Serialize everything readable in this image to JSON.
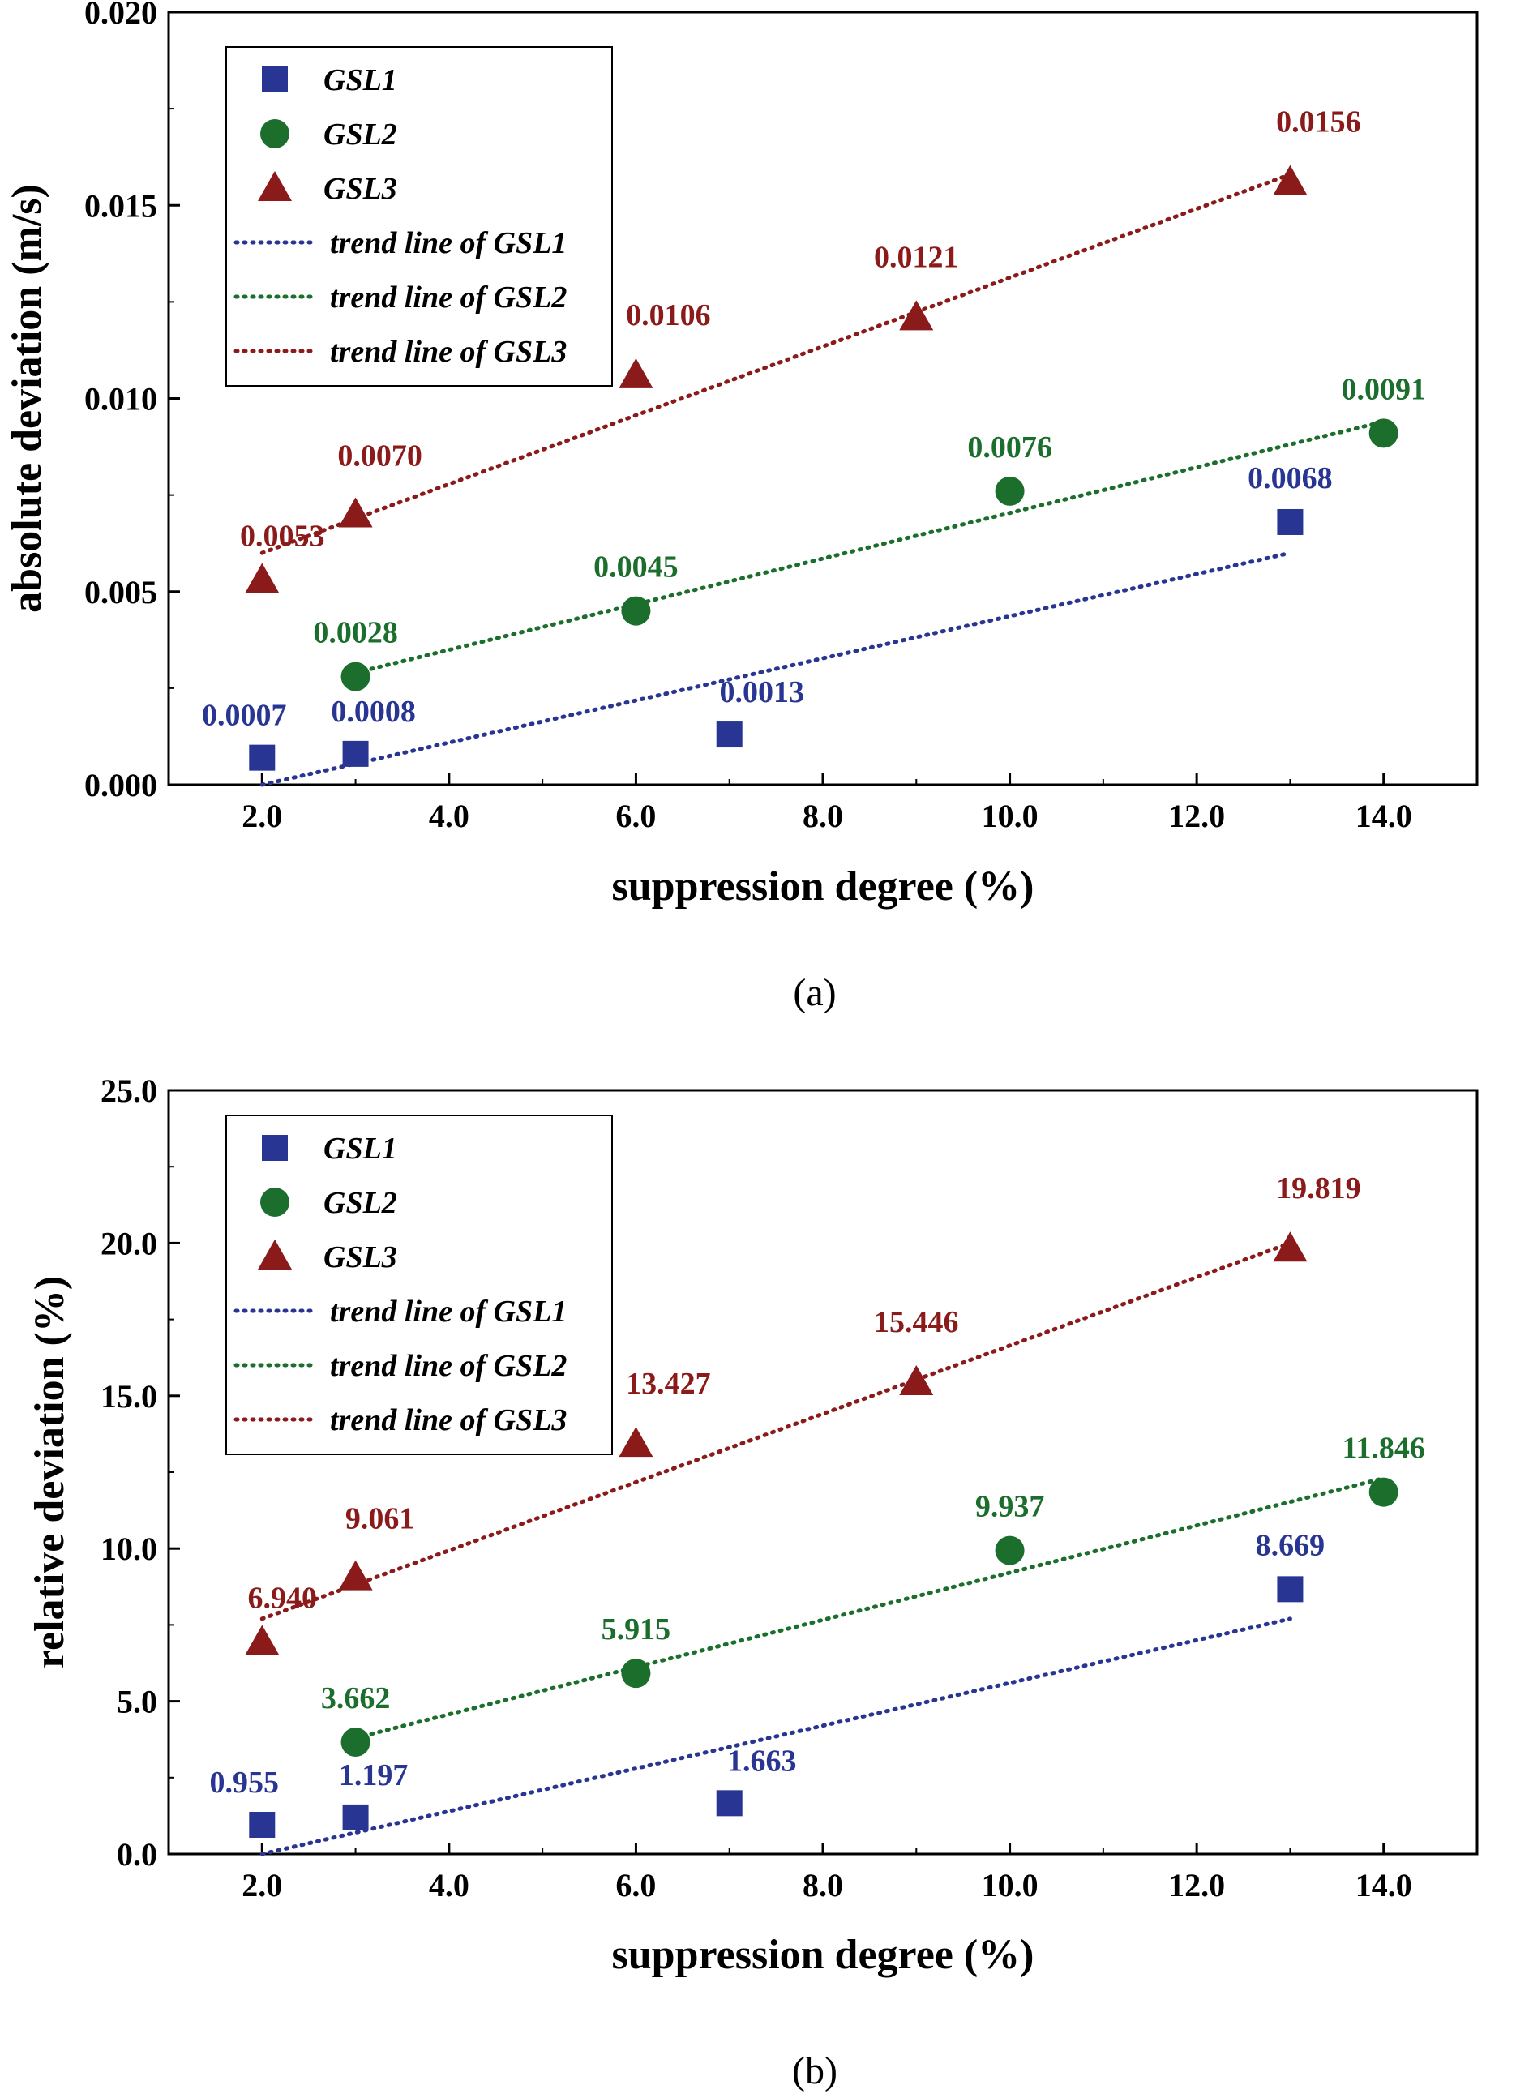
{
  "colors": {
    "GSL1": "#283593",
    "GSL2": "#1b6e2c",
    "GSL3": "#8b1a1a"
  },
  "chart_data": [
    {
      "type": "scatter",
      "caption": "(a)",
      "xlabel": "suppression degree (%)",
      "ylabel": "absolute deviation (m/s)",
      "xlim": [
        1.0,
        15.0
      ],
      "ylim": [
        0.0,
        0.02
      ],
      "xticks": [
        2,
        4,
        6,
        8,
        10,
        12,
        14
      ],
      "xtick_labels": [
        "2.0",
        "4.0",
        "6.0",
        "8.0",
        "10.0",
        "12.0",
        "14.0"
      ],
      "yticks": [
        0.0,
        0.005,
        0.01,
        0.015,
        0.02
      ],
      "ytick_labels": [
        "0.000",
        "0.005",
        "0.010",
        "0.015",
        "0.020"
      ],
      "legend_position": "top-left",
      "grid": false,
      "series": [
        {
          "name": "GSL1",
          "marker": "square",
          "x": [
            2,
            3,
            7,
            13
          ],
          "y": [
            0.0007,
            0.0008,
            0.0013,
            0.0068
          ],
          "labels": [
            "0.0007",
            "0.0008",
            "0.0013",
            "0.0068"
          ]
        },
        {
          "name": "GSL2",
          "marker": "circle",
          "x": [
            3,
            6,
            10,
            14
          ],
          "y": [
            0.0028,
            0.0045,
            0.0076,
            0.0091
          ],
          "labels": [
            "0.0028",
            "0.0045",
            "0.0076",
            "0.0091"
          ]
        },
        {
          "name": "GSL3",
          "marker": "triangle",
          "x": [
            2,
            3,
            6,
            9,
            13
          ],
          "y": [
            0.0053,
            0.007,
            0.0106,
            0.0121,
            0.0156
          ],
          "labels": [
            "0.0053",
            "0.0070",
            "0.0106",
            "0.0121",
            "0.0156"
          ]
        }
      ],
      "trend_lines": [
        {
          "name": "trend line of GSL1",
          "series": "GSL1",
          "x": [
            2,
            13
          ],
          "y": [
            0.0,
            0.006
          ]
        },
        {
          "name": "trend line of GSL2",
          "series": "GSL2",
          "x": [
            3,
            14
          ],
          "y": [
            0.0029,
            0.0094
          ]
        },
        {
          "name": "trend line of GSL3",
          "series": "GSL3",
          "x": [
            2,
            13
          ],
          "y": [
            0.006,
            0.0158
          ]
        }
      ]
    },
    {
      "type": "scatter",
      "caption": "(b)",
      "xlabel": "suppression degree (%)",
      "ylabel": "relative deviation (%)",
      "xlim": [
        1.0,
        15.0
      ],
      "ylim": [
        0.0,
        25.0
      ],
      "xticks": [
        2,
        4,
        6,
        8,
        10,
        12,
        14
      ],
      "xtick_labels": [
        "2.0",
        "4.0",
        "6.0",
        "8.0",
        "10.0",
        "12.0",
        "14.0"
      ],
      "yticks": [
        0,
        5,
        10,
        15,
        20,
        25
      ],
      "ytick_labels": [
        "0.0",
        "5.0",
        "10.0",
        "15.0",
        "20.0",
        "25.0"
      ],
      "legend_position": "top-left",
      "grid": false,
      "series": [
        {
          "name": "GSL1",
          "marker": "square",
          "x": [
            2,
            3,
            7,
            13
          ],
          "y": [
            0.955,
            1.197,
            1.663,
            8.669
          ],
          "labels": [
            "0.955",
            "1.197",
            "1.663",
            "8.669"
          ]
        },
        {
          "name": "GSL2",
          "marker": "circle",
          "x": [
            3,
            6,
            10,
            14
          ],
          "y": [
            3.662,
            5.915,
            9.937,
            11.846
          ],
          "labels": [
            "3.662",
            "5.915",
            "9.937",
            "11.846"
          ]
        },
        {
          "name": "GSL3",
          "marker": "triangle",
          "x": [
            2,
            3,
            6,
            9,
            13
          ],
          "y": [
            6.94,
            9.061,
            13.427,
            15.446,
            19.819
          ],
          "labels": [
            "6.940",
            "9.061",
            "13.427",
            "15.446",
            "19.819"
          ]
        }
      ],
      "trend_lines": [
        {
          "name": "trend line of GSL1",
          "series": "GSL1",
          "x": [
            2,
            13
          ],
          "y": [
            0.0,
            7.7
          ]
        },
        {
          "name": "trend line of GSL2",
          "series": "GSL2",
          "x": [
            3,
            14
          ],
          "y": [
            3.8,
            12.3
          ]
        },
        {
          "name": "trend line of GSL3",
          "series": "GSL3",
          "x": [
            2,
            13
          ],
          "y": [
            7.7,
            20.0
          ]
        }
      ]
    }
  ]
}
